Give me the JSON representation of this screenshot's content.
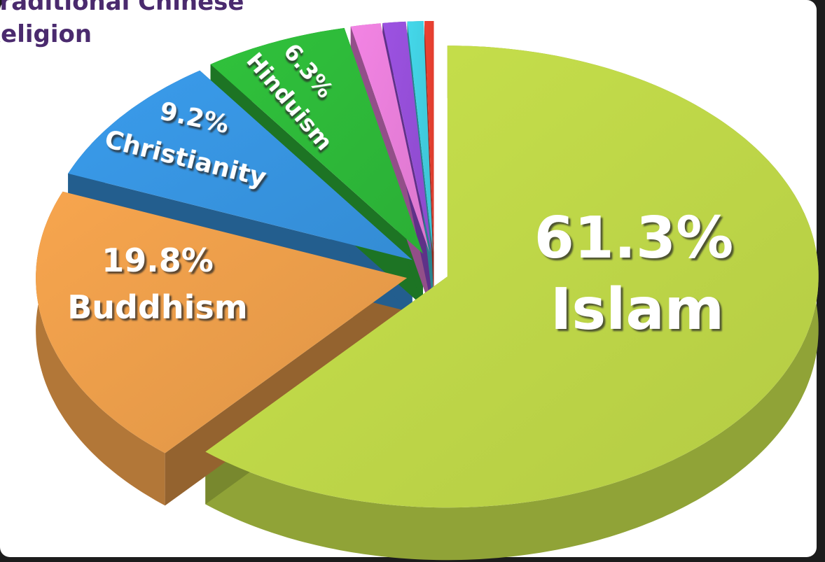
{
  "chart_data": {
    "type": "pie3d",
    "annotation": [
      "Traditional Chinese",
      "Religion"
    ],
    "categories": [
      "Islam",
      "Buddhism",
      "Christianity",
      "Hinduism",
      null,
      null,
      null,
      null
    ],
    "values": [
      61.3,
      19.8,
      9.2,
      6.3,
      1.3,
      1.0,
      0.7,
      0.4
    ],
    "value_labels": [
      "61.3%",
      "19.8%",
      "9.2%",
      "6.3%",
      null,
      null,
      null,
      null
    ],
    "colors": [
      "#c8e24c",
      "#f7a54e",
      "#3a9cec",
      "#30c23c",
      "#f384e4",
      "#9c52e2",
      "#44d8ea",
      "#f04232"
    ]
  }
}
